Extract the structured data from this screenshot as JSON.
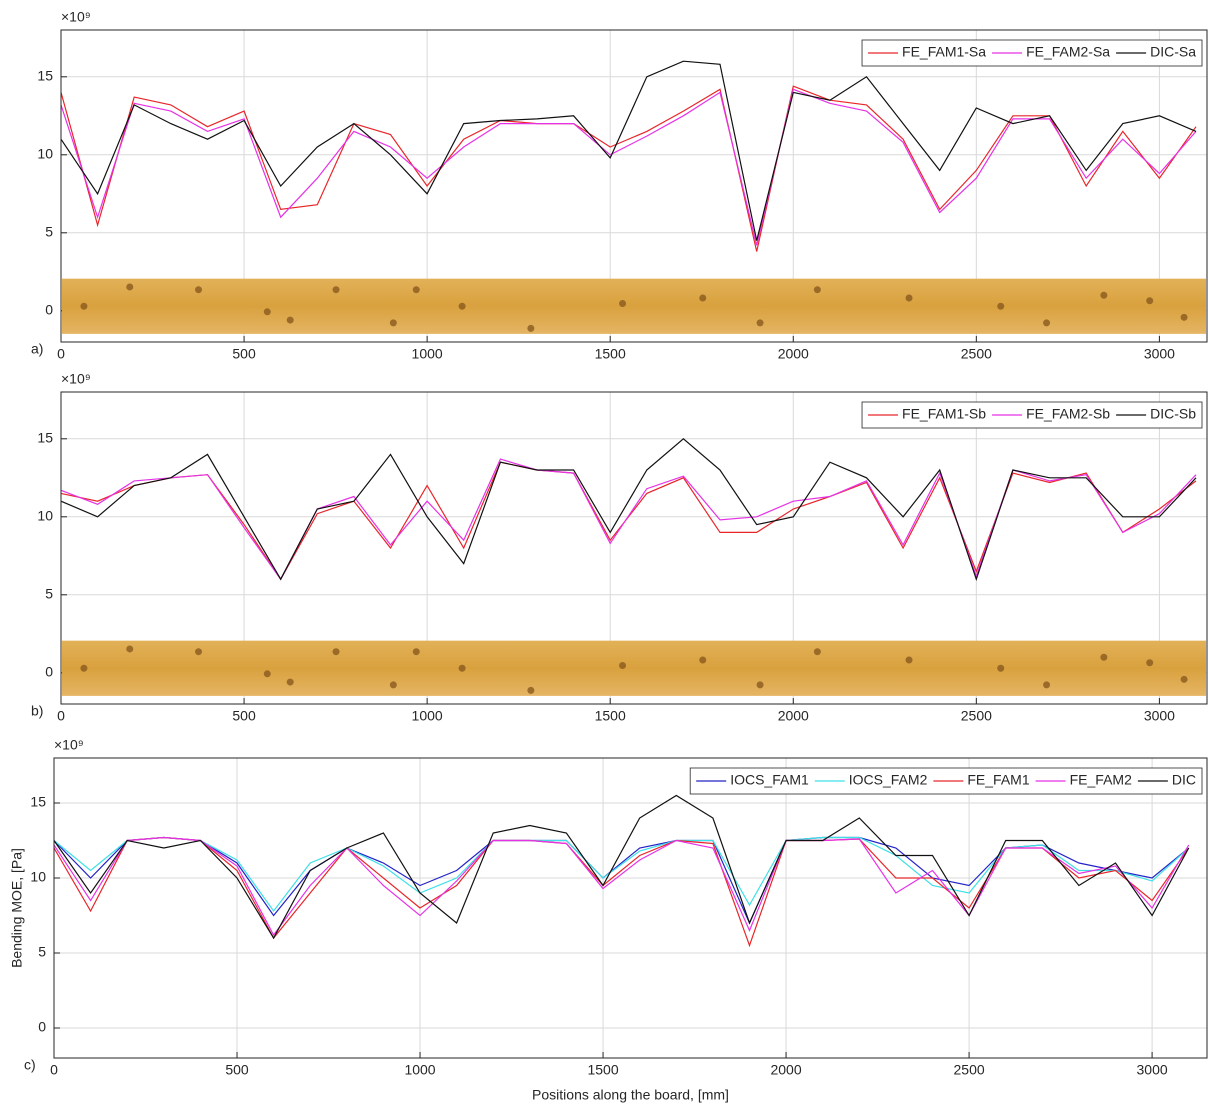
{
  "chart_data": [
    {
      "type": "line",
      "panel_label": "a)",
      "y_exponent": "×10⁹",
      "board_image": true,
      "grid": true,
      "legend": "top-right",
      "xlim": [
        0,
        3130
      ],
      "ylim": [
        -2,
        18
      ],
      "xticks": [
        0,
        500,
        1000,
        1500,
        2000,
        2500,
        3000
      ],
      "yticks": [
        0,
        5,
        10,
        15
      ],
      "x": [
        0,
        100,
        200,
        300,
        400,
        500,
        600,
        700,
        800,
        900,
        1000,
        1100,
        1200,
        1300,
        1400,
        1500,
        1600,
        1700,
        1800,
        1900,
        2000,
        2100,
        2200,
        2300,
        2400,
        2500,
        2600,
        2700,
        2800,
        2900,
        3000,
        3100
      ],
      "series": [
        {
          "name": "FE_FAM1-Sa",
          "color": "#e8262a",
          "values": [
            14,
            5.5,
            13.7,
            13.2,
            11.8,
            12.8,
            6.5,
            6.8,
            12,
            11.3,
            8,
            11,
            12.2,
            12,
            12,
            10.5,
            11.5,
            12.8,
            14.2,
            3.8,
            14.4,
            13.5,
            13.2,
            11,
            6.5,
            9,
            12.5,
            12.5,
            8,
            11.5,
            8.5,
            11.8
          ]
        },
        {
          "name": "FE_FAM2-Sa",
          "color": "#e632e6",
          "values": [
            13.2,
            6,
            13.3,
            12.8,
            11.5,
            12.3,
            6,
            8.5,
            11.5,
            10.5,
            8.5,
            10.5,
            12,
            12,
            12,
            10,
            11.2,
            12.5,
            14,
            4.2,
            14.2,
            13.3,
            12.8,
            10.8,
            6.3,
            8.5,
            12.3,
            12.3,
            8.5,
            11,
            8.8,
            11.5
          ]
        },
        {
          "name": "DIC-Sa",
          "color": "#111111",
          "values": [
            11,
            7.5,
            13.2,
            12,
            11,
            12.2,
            8,
            10.5,
            12,
            10,
            7.5,
            12,
            12.2,
            12.3,
            12.5,
            9.8,
            15,
            16,
            15.8,
            4.5,
            14,
            13.5,
            15,
            12,
            9,
            13,
            12,
            12.5,
            9,
            12,
            12.5,
            11.5
          ]
        }
      ]
    },
    {
      "type": "line",
      "panel_label": "b)",
      "y_exponent": "×10⁹",
      "board_image": true,
      "grid": true,
      "legend": "top-right",
      "xlim": [
        0,
        3130
      ],
      "ylim": [
        -2,
        18
      ],
      "xticks": [
        0,
        500,
        1000,
        1500,
        2000,
        2500,
        3000
      ],
      "yticks": [
        0,
        5,
        10,
        15
      ],
      "x": [
        0,
        100,
        200,
        300,
        400,
        500,
        600,
        700,
        800,
        900,
        1000,
        1100,
        1200,
        1300,
        1400,
        1500,
        1600,
        1700,
        1800,
        1900,
        2000,
        2100,
        2200,
        2300,
        2400,
        2500,
        2600,
        2700,
        2800,
        2900,
        3000,
        3100
      ],
      "series": [
        {
          "name": "FE_FAM1-Sb",
          "color": "#e8262a",
          "values": [
            11.5,
            11,
            12,
            12.5,
            12.7,
            9.5,
            6,
            10.2,
            11,
            8,
            12,
            8,
            13.5,
            13,
            12.8,
            8.5,
            11.5,
            12.5,
            9,
            9,
            10.5,
            11.3,
            12.2,
            8,
            12.5,
            6.5,
            12.8,
            12.2,
            12.8,
            9,
            10.5,
            12.3
          ]
        },
        {
          "name": "FE_FAM2-Sb",
          "color": "#e632e6",
          "values": [
            11.7,
            10.8,
            12.3,
            12.5,
            12.7,
            9.3,
            6,
            10.5,
            11.3,
            8.2,
            11,
            8.5,
            13.7,
            13,
            12.8,
            8.3,
            11.8,
            12.6,
            9.8,
            10,
            11,
            11.3,
            12.3,
            8.2,
            12.8,
            6.2,
            13,
            12.3,
            12.7,
            9,
            10.2,
            12.7
          ]
        },
        {
          "name": "DIC-Sb",
          "color": "#111111",
          "values": [
            11,
            10,
            12,
            12.5,
            14,
            10,
            6,
            10.5,
            11,
            14,
            10,
            7,
            13.5,
            13,
            13,
            9,
            13,
            15,
            13,
            9.5,
            10,
            13.5,
            12.5,
            10,
            13,
            6,
            13,
            12.5,
            12.5,
            10,
            10,
            12.5
          ]
        }
      ]
    },
    {
      "type": "line",
      "panel_label": "c)",
      "y_exponent": "×10⁹",
      "board_image": false,
      "grid": true,
      "legend": "top-right",
      "x_label": "Positions along the board, [mm]",
      "y_label": "Bending MOE, [Pa]",
      "xlim": [
        0,
        3150
      ],
      "ylim": [
        -2,
        18
      ],
      "xticks": [
        0,
        500,
        1000,
        1500,
        2000,
        2500,
        3000
      ],
      "yticks": [
        0,
        5,
        10,
        15
      ],
      "x": [
        0,
        100,
        200,
        300,
        400,
        500,
        600,
        700,
        800,
        900,
        1000,
        1100,
        1200,
        1300,
        1400,
        1500,
        1600,
        1700,
        1800,
        1900,
        2000,
        2100,
        2200,
        2300,
        2400,
        2500,
        2600,
        2700,
        2800,
        2900,
        3000,
        3100
      ],
      "series": [
        {
          "name": "IOCS_FAM1",
          "color": "#2323c8",
          "values": [
            12.5,
            10,
            12.5,
            12.7,
            12.5,
            11,
            7.5,
            10.5,
            12,
            11,
            9.5,
            10.5,
            12.5,
            12.5,
            12.5,
            10,
            12,
            12.5,
            12.5,
            7,
            12.5,
            12.7,
            12.7,
            12,
            10,
            9.5,
            12,
            12.2,
            11,
            10.5,
            10,
            12
          ]
        },
        {
          "name": "IOCS_FAM2",
          "color": "#3ee0e6",
          "values": [
            12.5,
            10.5,
            12.5,
            12.7,
            12.5,
            11.2,
            7.8,
            11,
            12,
            10.8,
            9,
            10,
            12.5,
            12.5,
            12.5,
            10,
            11.8,
            12.5,
            12.5,
            8.2,
            12.5,
            12.7,
            12.7,
            11.5,
            9.5,
            9,
            12,
            12.2,
            10.5,
            10.5,
            9.8,
            12
          ]
        },
        {
          "name": "FE_FAM1",
          "color": "#e8262a",
          "values": [
            12,
            7.8,
            12.5,
            12.7,
            12.5,
            10.5,
            6,
            9,
            12,
            10,
            8,
            9.5,
            12.5,
            12.5,
            12.3,
            9.5,
            11.5,
            12.5,
            12.3,
            5.5,
            12.5,
            12.5,
            12.6,
            10,
            10,
            8,
            12,
            12,
            10,
            10.5,
            8.5,
            12
          ]
        },
        {
          "name": "FE_FAM2",
          "color": "#e632e6",
          "values": [
            12.2,
            8.5,
            12.5,
            12.7,
            12.5,
            10.8,
            6.2,
            9.5,
            12,
            9.5,
            7.5,
            9.8,
            12.5,
            12.5,
            12.3,
            9.3,
            11.2,
            12.5,
            12,
            6.5,
            12.5,
            12.5,
            12.6,
            9,
            10.5,
            7.5,
            12,
            12,
            10.3,
            10.8,
            8,
            12.2
          ]
        },
        {
          "name": "DIC",
          "color": "#111111",
          "values": [
            12.5,
            9,
            12.5,
            12,
            12.5,
            10,
            6,
            10.5,
            12,
            13,
            9,
            7,
            13,
            13.5,
            13,
            9.5,
            14,
            15.5,
            14,
            7,
            12.5,
            12.5,
            14,
            11.5,
            11.5,
            7.5,
            12.5,
            12.5,
            9.5,
            11,
            7.5,
            12
          ]
        }
      ]
    }
  ]
}
